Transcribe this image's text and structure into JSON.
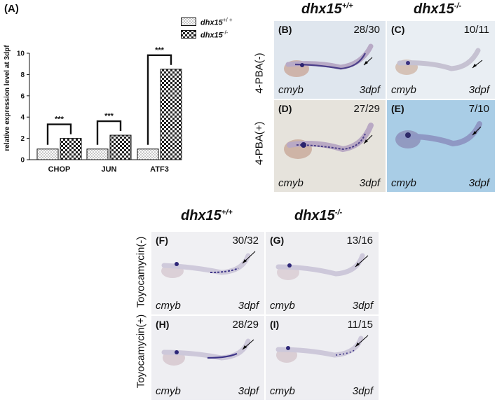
{
  "panel_a": {
    "label": "(A)",
    "legend": [
      {
        "name_base": "dhx15",
        "name_sup": "+/ +",
        "pattern": "dots"
      },
      {
        "name_base": "dhx15",
        "name_sup": "-/-",
        "pattern": "checker"
      }
    ]
  },
  "chart_data": {
    "type": "bar",
    "categories": [
      "CHOP",
      "JUN",
      "ATF3"
    ],
    "series": [
      {
        "name": "dhx15+/+",
        "values": [
          1,
          1,
          1
        ]
      },
      {
        "name": "dhx15-/-",
        "values": [
          2.0,
          2.3,
          8.5
        ]
      }
    ],
    "ylabel": "relative expression level at 3dpf",
    "xlabel": "",
    "ylim": [
      0,
      10
    ],
    "yticks": [
      0,
      2,
      4,
      6,
      8,
      10
    ],
    "significance": [
      "***",
      "***",
      "***"
    ],
    "legend_position": "top-right"
  },
  "top_grid": {
    "col_heads": [
      {
        "base": "dhx15",
        "sup": "+/+"
      },
      {
        "base": "dhx15",
        "sup": "-/-"
      }
    ],
    "row_labels": [
      "4-PBA(-)",
      "4-PBA(+)"
    ],
    "panels": [
      {
        "label": "(B)",
        "count": "28/30",
        "gene": "cmyb",
        "stage": "3dpf",
        "bg": "#dfe6ee"
      },
      {
        "label": "(C)",
        "count": "10/11",
        "gene": "cmyb",
        "stage": "3dpf",
        "bg": "#e9eef3"
      },
      {
        "label": "(D)",
        "count": "27/29",
        "gene": "cmyb",
        "stage": "3dpf",
        "bg": "#e6e3dc"
      },
      {
        "label": "(E)",
        "count": "7/10",
        "gene": "cmyb",
        "stage": "3dpf",
        "bg": "#a9cde6"
      }
    ]
  },
  "bottom_grid": {
    "col_heads": [
      {
        "base": "dhx15",
        "sup": "+/+"
      },
      {
        "base": "dhx15",
        "sup": "-/-"
      }
    ],
    "row_labels": [
      "Toyocamycin(-)",
      "Toyocamycin(+)"
    ],
    "panels": [
      {
        "label": "(F)",
        "count": "30/32",
        "gene": "cmyb",
        "stage": "3dpf",
        "bg": "#f0f0f3"
      },
      {
        "label": "(G)",
        "count": "13/16",
        "gene": "cmyb",
        "stage": "3dpf",
        "bg": "#eeeef1"
      },
      {
        "label": "(H)",
        "count": "28/29",
        "gene": "cmyb",
        "stage": "3dpf",
        "bg": "#eeeef2"
      },
      {
        "label": "(I)",
        "count": "11/15",
        "gene": "cmyb",
        "stage": "3dpf",
        "bg": "#eeeef2"
      }
    ]
  }
}
